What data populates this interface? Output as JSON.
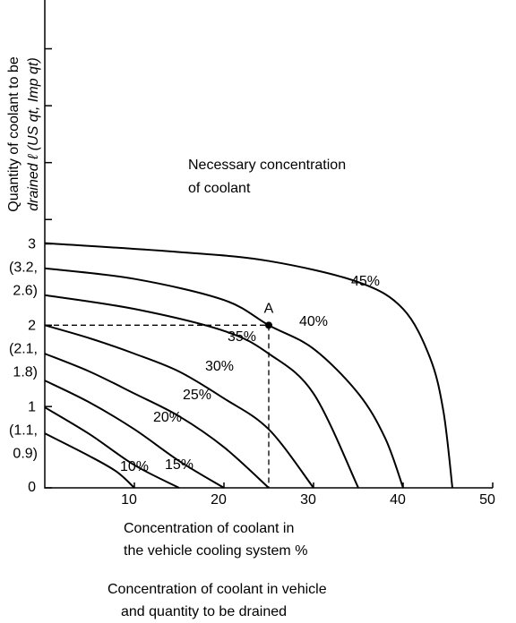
{
  "chart_data": {
    "type": "line",
    "annotation": [
      "Necessary concentration",
      "of coolant"
    ],
    "ylabel": [
      "Quantity of coolant to be",
      "drained ℓ (US qt, Imp qt)"
    ],
    "xlabel": [
      "Concentration of coolant in",
      "the vehicle cooling system %"
    ],
    "caption": [
      "Concentration of coolant in vehicle",
      "and quantity to be drained"
    ],
    "xlim": [
      0,
      50
    ],
    "ylim": [
      0,
      6
    ],
    "xticks": [
      10,
      20,
      30,
      40,
      50
    ],
    "yticks": [
      {
        "value": 0,
        "label": [
          "0"
        ]
      },
      {
        "value": 1,
        "label": [
          "1",
          "(1.1,",
          "0.9)"
        ]
      },
      {
        "value": 2,
        "label": [
          "2",
          "(2.1,",
          "1.8)"
        ]
      },
      {
        "value": 3,
        "label": [
          "3",
          "(3.2,",
          "2.6)"
        ]
      }
    ],
    "minor_yticks": [
      3.3,
      4.0,
      4.7,
      5.4
    ],
    "series": [
      {
        "name": "10%",
        "x": [
          0,
          5,
          8,
          10
        ],
        "values": [
          0.67,
          0.39,
          0.2,
          0
        ]
      },
      {
        "name": "15%",
        "x": [
          0,
          5,
          10,
          15
        ],
        "values": [
          0.99,
          0.66,
          0.28,
          0
        ]
      },
      {
        "name": "20%",
        "x": [
          0,
          5,
          10,
          15,
          20
        ],
        "values": [
          1.32,
          1.05,
          0.72,
          0.33,
          0
        ]
      },
      {
        "name": "25%",
        "x": [
          0,
          5,
          10,
          15,
          20,
          25
        ],
        "values": [
          1.65,
          1.43,
          1.16,
          0.88,
          0.5,
          0
        ]
      },
      {
        "name": "30%",
        "x": [
          0,
          5,
          10,
          15,
          20,
          25,
          30
        ],
        "values": [
          2.0,
          1.84,
          1.65,
          1.43,
          1.1,
          0.72,
          0
        ]
      },
      {
        "name": "35%",
        "x": [
          0,
          10,
          20,
          25,
          30,
          35
        ],
        "values": [
          2.37,
          2.2,
          1.93,
          1.65,
          1.16,
          0
        ]
      },
      {
        "name": "40%",
        "x": [
          0,
          10,
          20,
          25,
          30,
          35,
          38,
          40
        ],
        "values": [
          2.7,
          2.57,
          2.31,
          2.0,
          1.71,
          1.16,
          0.61,
          0
        ]
      },
      {
        "name": "45%",
        "x": [
          0,
          15,
          25,
          35,
          40,
          43,
          44.5,
          45.5
        ],
        "values": [
          3.01,
          2.9,
          2.79,
          2.53,
          2.2,
          1.6,
          0.94,
          0
        ]
      }
    ],
    "point": {
      "label": "A",
      "x": 25,
      "y": 2
    }
  }
}
